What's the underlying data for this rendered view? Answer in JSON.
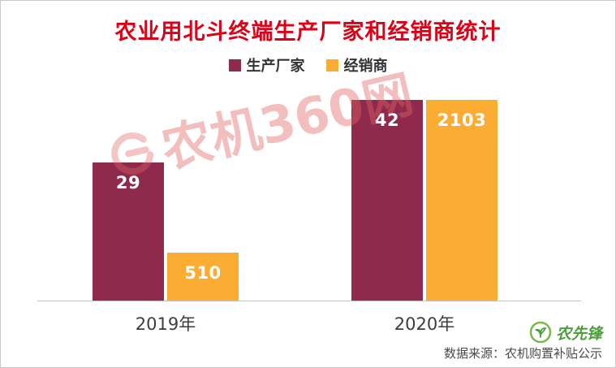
{
  "title": "农业用北斗终端生产厂家和经销商统计",
  "colors": {
    "title": "#dd0016",
    "manufacturer_bar": "#8f2a4c",
    "dealer_bar": "#fbac33",
    "watermark": "rgba(225,100,100,0.42)",
    "seal_green": "#4d9f3c"
  },
  "watermark": {
    "text": "农机360网"
  },
  "footer": {
    "source": "数据来源：农机购置补贴公示",
    "logo_text": "农先锋"
  },
  "chart_data": {
    "type": "bar",
    "categories": [
      "2019年",
      "2020年"
    ],
    "series": [
      {
        "name": "生产厂家",
        "values": [
          29,
          42
        ],
        "color": "#8f2a4c"
      },
      {
        "name": "经销商",
        "values": [
          510,
          2103
        ],
        "color": "#fbac33"
      }
    ],
    "title": "农业用北斗终端生产厂家和经销商统计",
    "xlabel": "",
    "ylabel": "",
    "legend_position": "top-center",
    "grid": false,
    "value_labels": "inside top of bars, white bold",
    "scaling_note": "each series normalized to its own maximum (hidden dual axes); tallest bars reach equal height"
  }
}
